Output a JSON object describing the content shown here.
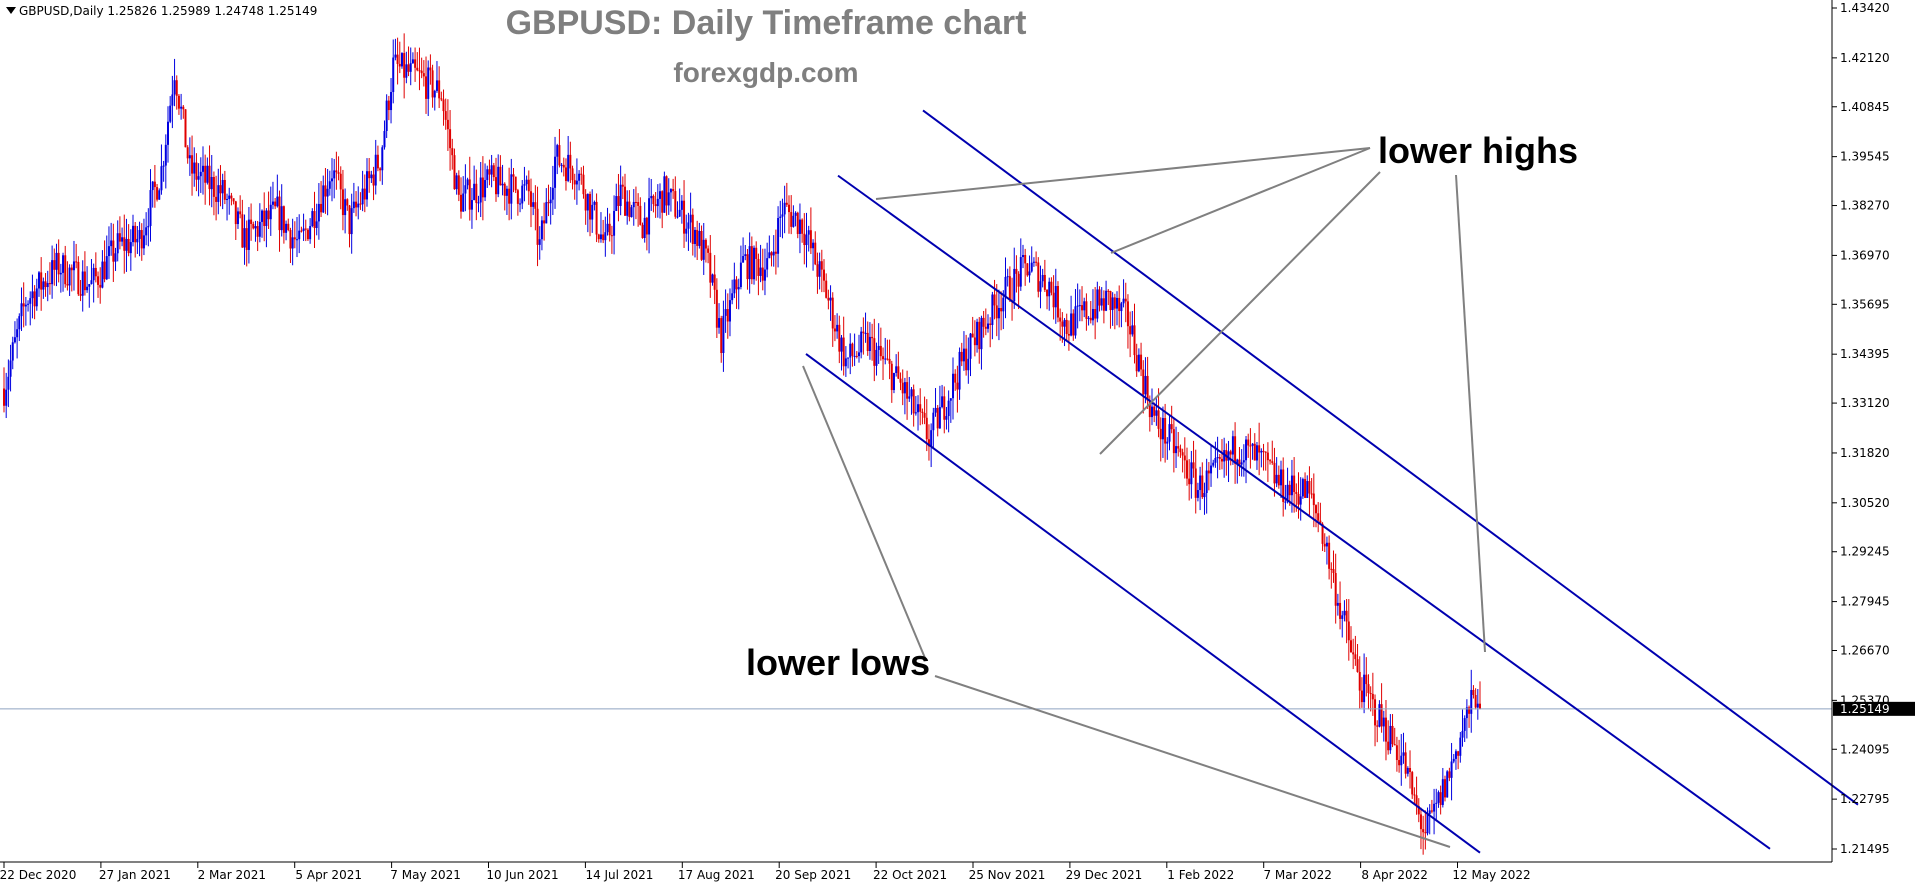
{
  "chart_data": {
    "type": "candlestick",
    "title": "GBPUSD: Daily Timeframe chart",
    "subtitle": "forexgdp.com",
    "info_line": {
      "symbol": "GBPUSD,Daily",
      "open": "1.25826",
      "high": "1.25989",
      "low": "1.24748",
      "close": "1.25149"
    },
    "y_ticks": [
      "1.43420",
      "1.42120",
      "1.40845",
      "1.39545",
      "1.38270",
      "1.36970",
      "1.35695",
      "1.34395",
      "1.33120",
      "1.31820",
      "1.30520",
      "1.29245",
      "1.27945",
      "1.26670",
      "1.25370",
      "1.24095",
      "1.22795",
      "1.21495"
    ],
    "ylim": [
      1.2085,
      1.4342
    ],
    "current_price": "1.25149",
    "x_ticks": [
      "22 Dec 2020",
      "27 Jan 2021",
      "2 Mar 2021",
      "5 Apr 2021",
      "7 May 2021",
      "10 Jun 2021",
      "14 Jul 2021",
      "17 Aug 2021",
      "20 Sep 2021",
      "22 Oct 2021",
      "25 Nov 2021",
      "29 Dec 2021",
      "1 Feb 2022",
      "7 Mar 2022",
      "8 Apr 2022",
      "12 May 2022"
    ],
    "price_path": [
      [
        0,
        1.335
      ],
      [
        10,
        1.358
      ],
      [
        25,
        1.367
      ],
      [
        40,
        1.362
      ],
      [
        52,
        1.372
      ],
      [
        62,
        1.374
      ],
      [
        72,
        1.392
      ],
      [
        78,
        1.4185
      ],
      [
        85,
        1.392
      ],
      [
        100,
        1.386
      ],
      [
        110,
        1.374
      ],
      [
        125,
        1.381
      ],
      [
        135,
        1.372
      ],
      [
        150,
        1.392
      ],
      [
        158,
        1.378
      ],
      [
        172,
        1.395
      ],
      [
        178,
        1.419
      ],
      [
        190,
        1.416
      ],
      [
        200,
        1.412
      ],
      [
        208,
        1.384
      ],
      [
        222,
        1.389
      ],
      [
        240,
        1.386
      ],
      [
        245,
        1.372
      ],
      [
        252,
        1.395
      ],
      [
        262,
        1.392
      ],
      [
        275,
        1.372
      ],
      [
        282,
        1.386
      ],
      [
        292,
        1.378
      ],
      [
        302,
        1.386
      ],
      [
        316,
        1.376
      ],
      [
        322,
        1.367
      ],
      [
        328,
        1.348
      ],
      [
        338,
        1.368
      ],
      [
        350,
        1.367
      ],
      [
        356,
        1.382
      ],
      [
        365,
        1.378
      ],
      [
        376,
        1.36
      ],
      [
        385,
        1.342
      ],
      [
        395,
        1.347
      ],
      [
        410,
        1.336
      ],
      [
        423,
        1.322
      ],
      [
        430,
        1.331
      ],
      [
        440,
        1.344
      ],
      [
        455,
        1.358
      ],
      [
        468,
        1.367
      ],
      [
        478,
        1.362
      ],
      [
        486,
        1.351
      ],
      [
        495,
        1.355
      ],
      [
        505,
        1.358
      ],
      [
        514,
        1.353
      ],
      [
        518,
        1.344
      ],
      [
        526,
        1.327
      ],
      [
        536,
        1.319
      ],
      [
        546,
        1.309
      ],
      [
        555,
        1.313
      ],
      [
        564,
        1.32
      ],
      [
        575,
        1.316
      ],
      [
        585,
        1.309
      ],
      [
        596,
        1.308
      ],
      [
        602,
        1.3
      ],
      [
        610,
        1.28
      ],
      [
        620,
        1.258
      ],
      [
        632,
        1.246
      ],
      [
        640,
        1.238
      ],
      [
        646,
        1.225
      ],
      [
        650,
        1.219
      ],
      [
        654,
        1.224
      ],
      [
        660,
        1.233
      ],
      [
        668,
        1.248
      ],
      [
        675,
        1.258
      ]
    ],
    "channel_lines": [
      {
        "name": "upper",
        "from": [
          1.4075,
          "Oct 2021"
        ],
        "to": [
          1.2265,
          "after May 2022"
        ]
      },
      {
        "name": "middle",
        "from": [
          1.3905,
          "Oct 2021"
        ],
        "to": [
          1.215,
          "after May 2022"
        ]
      },
      {
        "name": "lower",
        "from": [
          1.344,
          "Sep 2021"
        ],
        "to": [
          1.214,
          "May 2022"
        ]
      }
    ],
    "annotations": [
      {
        "text": "lower highs"
      },
      {
        "text": "lower lows"
      }
    ]
  },
  "colors": {
    "bull": "#0000e0",
    "bear": "#e00000",
    "channel": "#0000b0",
    "pointer": "#808080",
    "axis": "#000000",
    "price_line": "#8fa3c0"
  }
}
